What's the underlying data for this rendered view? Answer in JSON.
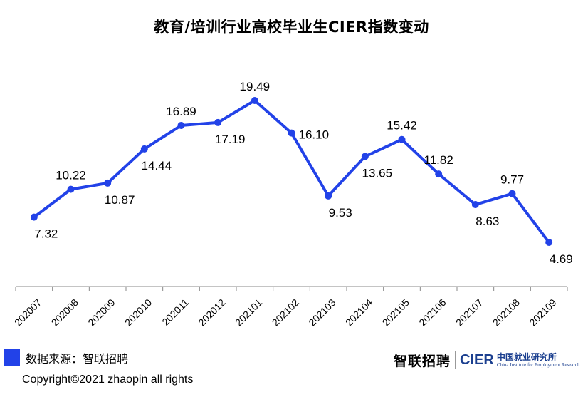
{
  "chart_data": {
    "type": "line",
    "title": "教育/培训行业高校毕业生CIER指数变动",
    "categories": [
      "202007",
      "202008",
      "202009",
      "202010",
      "202011",
      "202012",
      "202101",
      "202102",
      "202103",
      "202104",
      "202105",
      "202106",
      "202107",
      "202108",
      "202109"
    ],
    "values": [
      7.32,
      10.22,
      10.87,
      14.44,
      16.89,
      17.19,
      19.49,
      16.1,
      9.53,
      13.65,
      15.42,
      11.82,
      8.63,
      9.77,
      4.69
    ],
    "value_labels": [
      "7.32",
      "10.22",
      "10.87",
      "14.44",
      "16.89",
      "17.19",
      "19.49",
      "16.10",
      "9.53",
      "13.65",
      "15.42",
      "11.82",
      "8.63",
      "9.77",
      "4.69"
    ],
    "label_positions": [
      "below",
      "above",
      "below",
      "below",
      "above",
      "below",
      "above",
      "right",
      "below",
      "below",
      "above",
      "above",
      "below",
      "above",
      "below"
    ],
    "xlabel": "",
    "ylabel": "",
    "ylim": [
      0,
      22
    ],
    "grid": false,
    "line_color": "#2242e8"
  },
  "footer": {
    "source_text": "数据来源：智联招聘",
    "copyright": "Copyright©2021 zhaopin all rights",
    "source_swatch_color": "#2242e8"
  },
  "logos": {
    "zhilian": "智联招聘",
    "cier": "CIER",
    "cier_cn": "中国就业研究所",
    "cier_en": "China Institute for Employment Research"
  }
}
